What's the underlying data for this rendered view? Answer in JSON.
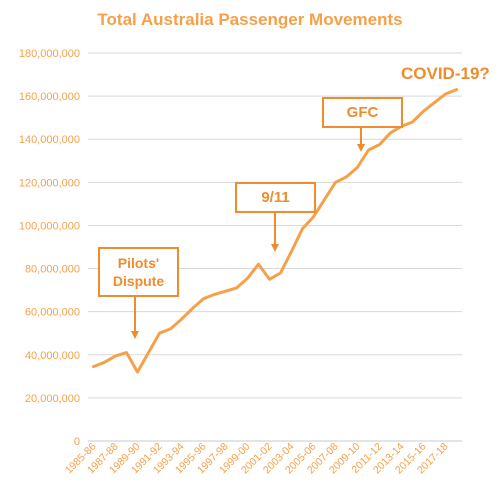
{
  "chart_data": {
    "type": "line",
    "title": "Total Australia Passenger Movements",
    "xlabel": "",
    "ylabel": "",
    "ylim": [
      0,
      180000000
    ],
    "y_ticks": [
      "0",
      "20,000,000",
      "40,000,000",
      "60,000,000",
      "80,000,000",
      "100,000,000",
      "120,000,000",
      "140,000,000",
      "160,000,000",
      "180,000,000"
    ],
    "x_tick_labels": [
      "1985-86",
      "1987-88",
      "1989-90",
      "1991-92",
      "1993-94",
      "1995-96",
      "1997-98",
      "1999-00",
      "2001-02",
      "2003-04",
      "2005-06",
      "2007-08",
      "2009-10",
      "2011-12",
      "2013-14",
      "2015-16",
      "2017-18"
    ],
    "grid": true,
    "line_color": "#f4a14a",
    "categories": [
      "1985-86",
      "1986-87",
      "1987-88",
      "1988-89",
      "1989-90",
      "1990-91",
      "1991-92",
      "1992-93",
      "1993-94",
      "1994-95",
      "1995-96",
      "1996-97",
      "1997-98",
      "1998-99",
      "1999-00",
      "2000-01",
      "2001-02",
      "2002-03",
      "2003-04",
      "2004-05",
      "2005-06",
      "2006-07",
      "2007-08",
      "2008-09",
      "2009-10",
      "2010-11",
      "2011-12",
      "2012-13",
      "2013-14",
      "2014-15",
      "2015-16",
      "2016-17",
      "2017-18",
      "2018-19"
    ],
    "values": [
      34500000,
      36500000,
      39500000,
      41000000,
      32000000,
      41000000,
      50000000,
      52000000,
      56500000,
      61500000,
      66000000,
      68000000,
      69500000,
      71000000,
      75500000,
      82000000,
      75000000,
      78000000,
      88000000,
      98500000,
      104000000,
      112000000,
      120000000,
      122500000,
      127000000,
      135000000,
      137500000,
      143000000,
      146000000,
      148000000,
      153000000,
      157000000,
      161000000,
      163000000
    ],
    "annotations": [
      {
        "label": "Pilots'\nDispute",
        "category": "1989-90"
      },
      {
        "label": "9/11",
        "category": "2003-04"
      },
      {
        "label": "GFC",
        "category": "2009-10"
      },
      {
        "label": "COVID-19?",
        "category": "2018-19"
      }
    ]
  }
}
